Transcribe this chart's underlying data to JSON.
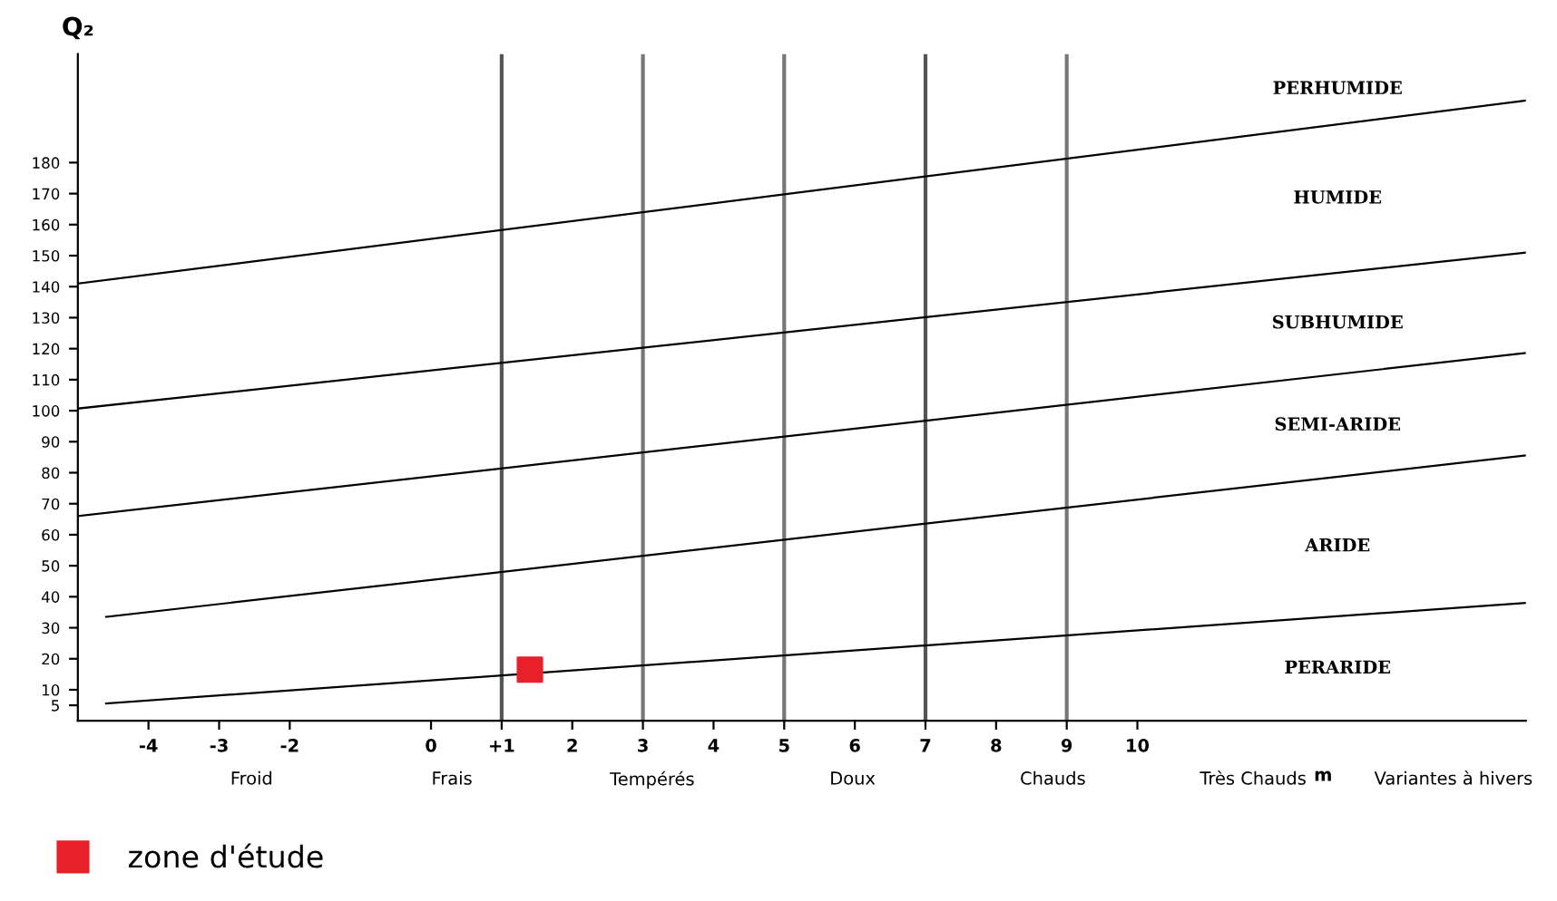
{
  "chart_data": {
    "type": "line",
    "ylabel": "Q₂",
    "xlabel": "m",
    "xlim": [
      -5,
      15.5
    ],
    "ylim": [
      0,
      215
    ],
    "xticks": [
      -4,
      -3,
      -2,
      0,
      {
        "value": 1,
        "label": "+1"
      },
      2,
      3,
      4,
      5,
      6,
      7,
      8,
      9,
      10
    ],
    "yticks": [
      5,
      10,
      20,
      30,
      40,
      50,
      60,
      70,
      80,
      90,
      100,
      110,
      120,
      130,
      140,
      150,
      160,
      170,
      180
    ],
    "grid": false,
    "legend": "bottom left",
    "series": [
      {
        "color": "#000000",
        "x": [
          -4.6,
          15.5
        ],
        "values": [
          5.6,
          38
        ]
      },
      {
        "color": "#000000",
        "x": [
          -4.6,
          15.5
        ],
        "values": [
          33.5,
          85.6
        ]
      },
      {
        "color": "#000000",
        "x": [
          -5,
          15.5
        ],
        "values": [
          66,
          118.6
        ]
      },
      {
        "color": "#000000",
        "x": [
          -5,
          15.5
        ],
        "values": [
          100.7,
          151
        ]
      },
      {
        "color": "#000000",
        "x": [
          -5,
          15.5
        ],
        "values": [
          141,
          200
        ]
      },
      {
        "type": "scatter",
        "name": "zone d'étude",
        "color": "#e8202a",
        "marker": "square",
        "x": [
          1.4
        ],
        "values": [
          16.5
        ]
      }
    ],
    "ref_lines": [
      {
        "axis": "x",
        "value": 1,
        "color": "#555555"
      },
      {
        "axis": "x",
        "value": 3,
        "color": "#777777"
      },
      {
        "axis": "x",
        "value": 5,
        "color": "#777777"
      },
      {
        "axis": "x",
        "value": 7,
        "color": "#555555"
      },
      {
        "axis": "x",
        "value": 9,
        "color": "#777777"
      }
    ],
    "annotations": [
      "PERHUMIDE",
      "HUMIDE",
      "SUBHUMIDE",
      "SEMI-ARIDE",
      "ARIDE",
      "PERARIDE",
      "Froid",
      "Frais",
      "Tempérés",
      "Doux",
      "Chauds",
      "Très Chauds",
      "Variantes à hivers"
    ]
  }
}
